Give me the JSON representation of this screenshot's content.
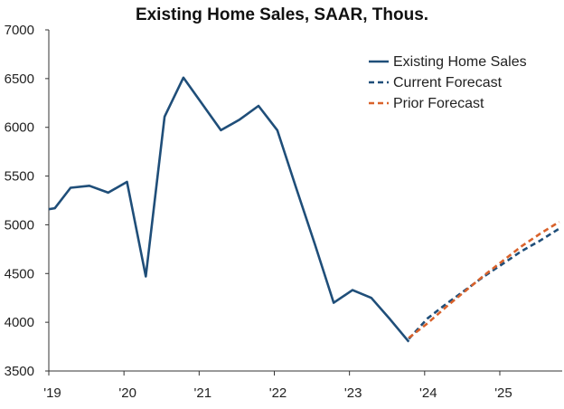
{
  "chart_data": {
    "type": "line",
    "title": "Existing Home Sales, SAAR, Thous.",
    "xlabel": "",
    "ylabel": "",
    "ylim": [
      3500,
      7000
    ],
    "yticks": [
      3500,
      4000,
      4500,
      5000,
      5500,
      6000,
      6500,
      7000
    ],
    "xlim": [
      2019.0,
      2025.83
    ],
    "xticks": [
      {
        "x": 2019,
        "label": "'19"
      },
      {
        "x": 2020,
        "label": "'20"
      },
      {
        "x": 2021,
        "label": "'21"
      },
      {
        "x": 2022,
        "label": "'22"
      },
      {
        "x": 2023,
        "label": "'23"
      },
      {
        "x": 2024,
        "label": "'24"
      },
      {
        "x": 2025,
        "label": "'25"
      }
    ],
    "grid": false,
    "legend_position": "top-right",
    "series": [
      {
        "name": "Existing Home Sales",
        "color": "#1f4e79",
        "style": "solid",
        "x": [
          2019.0,
          2019.08,
          2019.29,
          2019.54,
          2019.79,
          2020.04,
          2020.29,
          2020.54,
          2020.79,
          2021.04,
          2021.29,
          2021.54,
          2021.79,
          2022.04,
          2022.29,
          2022.54,
          2022.79,
          2023.04,
          2023.29,
          2023.54,
          2023.79
        ],
        "values": [
          5160,
          5170,
          5380,
          5400,
          5330,
          5440,
          4470,
          6110,
          6510,
          6240,
          5970,
          6080,
          6220,
          5970,
          5380,
          4800,
          4200,
          4330,
          4250,
          4030,
          3800
        ]
      },
      {
        "name": "Current Forecast",
        "color": "#1f4e79",
        "style": "dashed",
        "x": [
          2023.79,
          2024.04,
          2024.29,
          2024.54,
          2024.79,
          2025.04,
          2025.29,
          2025.54,
          2025.79
        ],
        "values": [
          3830,
          4040,
          4190,
          4330,
          4470,
          4600,
          4730,
          4840,
          4960
        ]
      },
      {
        "name": "Prior Forecast",
        "color": "#d9622b",
        "style": "dashed",
        "x": [
          2023.79,
          2024.04,
          2024.29,
          2024.54,
          2024.79,
          2025.04,
          2025.29,
          2025.54,
          2025.79
        ],
        "values": [
          3840,
          3990,
          4160,
          4320,
          4480,
          4630,
          4780,
          4910,
          5030
        ]
      }
    ]
  }
}
